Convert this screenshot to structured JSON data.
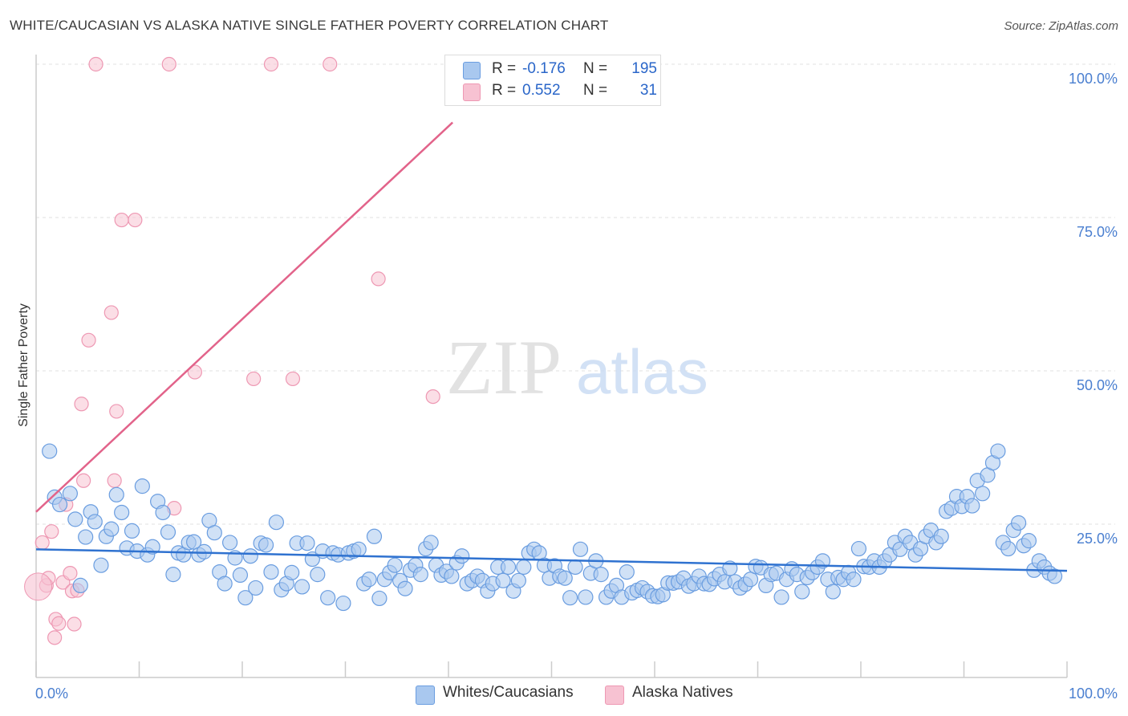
{
  "header": {
    "title": "WHITE/CAUCASIAN VS ALASKA NATIVE SINGLE FATHER POVERTY CORRELATION CHART",
    "source": "Source: ZipAtlas.com"
  },
  "watermark": {
    "zip": "ZIP",
    "atlas": "atlas"
  },
  "legend": {
    "rows": [
      {
        "r_label": "R =",
        "r_value": "-0.176",
        "n_label": "N =",
        "n_value": "195"
      },
      {
        "r_label": "R =",
        "r_value": "0.552",
        "n_label": "N =",
        "n_value": "31"
      }
    ],
    "bottom": [
      {
        "label": "Whites/Caucasians"
      },
      {
        "label": "Alaska Natives"
      }
    ]
  },
  "colors": {
    "blue_fill": "#a9c8ef",
    "blue_stroke": "#6a9de0",
    "blue_line": "#2f72d0",
    "pink_fill": "#f7c2d2",
    "pink_stroke": "#ee98b3",
    "pink_line": "#e2638a",
    "tick_text": "#4a7fd0"
  },
  "chart_data": {
    "type": "scatter",
    "xlabel": "",
    "ylabel": "Single Father Poverty",
    "xlim": [
      0,
      100
    ],
    "ylim": [
      0,
      100
    ],
    "grid": true,
    "legend_position": "top-center",
    "x_tick_labels": [
      "0.0%",
      "100.0%"
    ],
    "y_tick_labels": [
      "25.0%",
      "50.0%",
      "75.0%",
      "100.0%"
    ],
    "y_ticks": [
      25,
      50,
      75,
      100
    ],
    "series": [
      {
        "name": "Whites/Caucasians",
        "color": "blue",
        "trend": {
          "x": [
            0,
            100
          ],
          "y": [
            20.9,
            17.4
          ]
        },
        "points": [
          [
            1.3,
            36.9
          ],
          [
            1.8,
            29.4
          ],
          [
            2.3,
            28.2
          ],
          [
            3.3,
            30.0
          ],
          [
            3.8,
            25.8
          ],
          [
            4.3,
            15.0
          ],
          [
            4.8,
            22.9
          ],
          [
            5.3,
            27.0
          ],
          [
            5.7,
            25.4
          ],
          [
            6.3,
            18.3
          ],
          [
            6.8,
            23.0
          ],
          [
            7.3,
            24.2
          ],
          [
            7.8,
            29.8
          ],
          [
            8.3,
            26.9
          ],
          [
            8.8,
            21.1
          ],
          [
            9.3,
            23.9
          ],
          [
            9.8,
            20.6
          ],
          [
            10.3,
            31.2
          ],
          [
            10.8,
            20.0
          ],
          [
            11.3,
            21.3
          ],
          [
            11.8,
            28.7
          ],
          [
            12.3,
            26.9
          ],
          [
            12.8,
            23.7
          ],
          [
            13.3,
            16.8
          ],
          [
            13.8,
            20.3
          ],
          [
            14.3,
            20.0
          ],
          [
            14.8,
            22.0
          ],
          [
            15.3,
            22.1
          ],
          [
            15.8,
            20.0
          ],
          [
            16.3,
            20.5
          ],
          [
            16.8,
            25.6
          ],
          [
            17.3,
            23.6
          ],
          [
            17.8,
            17.2
          ],
          [
            18.3,
            15.3
          ],
          [
            18.8,
            22.0
          ],
          [
            19.3,
            19.5
          ],
          [
            19.8,
            16.7
          ],
          [
            20.3,
            13.0
          ],
          [
            20.8,
            19.8
          ],
          [
            21.3,
            14.6
          ],
          [
            21.8,
            21.9
          ],
          [
            22.3,
            21.6
          ],
          [
            22.8,
            17.2
          ],
          [
            23.3,
            25.3
          ],
          [
            23.8,
            14.3
          ],
          [
            24.3,
            15.3
          ],
          [
            24.8,
            17.1
          ],
          [
            25.3,
            21.9
          ],
          [
            25.8,
            14.8
          ],
          [
            26.3,
            21.9
          ],
          [
            26.8,
            19.3
          ],
          [
            27.3,
            16.8
          ],
          [
            27.8,
            20.6
          ],
          [
            28.3,
            13.0
          ],
          [
            28.8,
            20.3
          ],
          [
            29.3,
            20.0
          ],
          [
            29.8,
            12.1
          ],
          [
            30.3,
            20.3
          ],
          [
            30.8,
            20.6
          ],
          [
            31.3,
            20.9
          ],
          [
            31.8,
            15.3
          ],
          [
            32.3,
            16.0
          ],
          [
            32.8,
            23.0
          ],
          [
            33.3,
            12.9
          ],
          [
            33.8,
            16.0
          ],
          [
            34.3,
            17.1
          ],
          [
            34.8,
            18.3
          ],
          [
            35.3,
            15.8
          ],
          [
            35.8,
            14.5
          ],
          [
            36.3,
            17.5
          ],
          [
            36.8,
            18.3
          ],
          [
            37.3,
            16.8
          ],
          [
            37.8,
            21.0
          ],
          [
            38.3,
            22.0
          ],
          [
            38.8,
            18.3
          ],
          [
            39.3,
            16.7
          ],
          [
            39.8,
            17.3
          ],
          [
            40.3,
            16.5
          ],
          [
            40.8,
            18.7
          ],
          [
            41.3,
            19.8
          ],
          [
            41.8,
            15.3
          ],
          [
            42.3,
            15.8
          ],
          [
            42.8,
            16.5
          ],
          [
            43.3,
            15.8
          ],
          [
            43.8,
            14.1
          ],
          [
            44.3,
            15.3
          ],
          [
            44.8,
            18.0
          ],
          [
            45.3,
            15.8
          ],
          [
            45.8,
            18.0
          ],
          [
            46.3,
            14.1
          ],
          [
            46.8,
            15.8
          ],
          [
            47.3,
            18.0
          ],
          [
            47.8,
            20.3
          ],
          [
            48.3,
            20.9
          ],
          [
            48.8,
            20.3
          ],
          [
            49.3,
            18.3
          ],
          [
            49.8,
            16.2
          ],
          [
            50.3,
            18.2
          ],
          [
            50.8,
            16.5
          ],
          [
            51.3,
            16.2
          ],
          [
            51.8,
            13.0
          ],
          [
            52.3,
            18.0
          ],
          [
            52.8,
            20.9
          ],
          [
            53.3,
            13.1
          ],
          [
            53.8,
            17.0
          ],
          [
            54.3,
            19.0
          ],
          [
            54.8,
            16.8
          ],
          [
            55.3,
            13.1
          ],
          [
            55.8,
            14.1
          ],
          [
            56.3,
            15.0
          ],
          [
            56.8,
            13.1
          ],
          [
            57.3,
            17.2
          ],
          [
            57.8,
            13.8
          ],
          [
            58.3,
            14.2
          ],
          [
            58.8,
            14.6
          ],
          [
            59.3,
            14.0
          ],
          [
            59.8,
            13.3
          ],
          [
            60.3,
            13.2
          ],
          [
            60.8,
            13.5
          ],
          [
            61.3,
            15.4
          ],
          [
            61.8,
            15.4
          ],
          [
            62.3,
            15.6
          ],
          [
            62.8,
            16.2
          ],
          [
            63.3,
            14.9
          ],
          [
            63.8,
            15.3
          ],
          [
            64.3,
            16.5
          ],
          [
            64.8,
            15.3
          ],
          [
            65.3,
            15.2
          ],
          [
            65.8,
            16.1
          ],
          [
            66.3,
            16.8
          ],
          [
            66.8,
            15.6
          ],
          [
            67.3,
            17.8
          ],
          [
            67.8,
            15.6
          ],
          [
            68.3,
            14.6
          ],
          [
            68.8,
            15.2
          ],
          [
            69.3,
            16.0
          ],
          [
            69.8,
            18.1
          ],
          [
            70.3,
            17.9
          ],
          [
            70.8,
            15.0
          ],
          [
            71.3,
            16.8
          ],
          [
            71.8,
            17.0
          ],
          [
            72.3,
            13.1
          ],
          [
            72.8,
            16.0
          ],
          [
            73.3,
            17.7
          ],
          [
            73.8,
            16.8
          ],
          [
            74.3,
            14.0
          ],
          [
            74.8,
            16.3
          ],
          [
            75.3,
            17.1
          ],
          [
            75.8,
            18.0
          ],
          [
            76.3,
            19.0
          ],
          [
            76.8,
            16.0
          ],
          [
            77.3,
            14.0
          ],
          [
            77.8,
            16.3
          ],
          [
            78.3,
            16.0
          ],
          [
            78.8,
            17.1
          ],
          [
            79.3,
            16.0
          ],
          [
            79.8,
            21.0
          ],
          [
            80.3,
            18.1
          ],
          [
            80.8,
            18.0
          ],
          [
            81.3,
            19.0
          ],
          [
            81.8,
            18.0
          ],
          [
            82.3,
            19.0
          ],
          [
            82.8,
            20.0
          ],
          [
            83.3,
            22.0
          ],
          [
            83.8,
            20.9
          ],
          [
            84.3,
            23.0
          ],
          [
            84.8,
            22.0
          ],
          [
            85.3,
            20.0
          ],
          [
            85.8,
            21.0
          ],
          [
            86.3,
            23.0
          ],
          [
            86.8,
            24.0
          ],
          [
            87.3,
            22.0
          ],
          [
            87.8,
            23.0
          ],
          [
            88.3,
            27.1
          ],
          [
            88.8,
            27.6
          ],
          [
            89.3,
            29.5
          ],
          [
            89.8,
            27.9
          ],
          [
            90.3,
            29.5
          ],
          [
            90.8,
            28.0
          ],
          [
            91.3,
            32.1
          ],
          [
            91.8,
            30.0
          ],
          [
            92.3,
            33.0
          ],
          [
            92.8,
            35.0
          ],
          [
            93.3,
            36.9
          ],
          [
            93.8,
            22.0
          ],
          [
            94.3,
            21.0
          ],
          [
            94.8,
            24.0
          ],
          [
            95.3,
            25.2
          ],
          [
            95.8,
            21.5
          ],
          [
            96.3,
            22.3
          ],
          [
            96.8,
            17.5
          ],
          [
            97.3,
            19.0
          ],
          [
            97.8,
            18.0
          ],
          [
            98.3,
            17.0
          ],
          [
            98.8,
            16.5
          ]
        ]
      },
      {
        "name": "Alaska Natives",
        "color": "pink",
        "trend": {
          "x": [
            0,
            40.4
          ],
          "y": [
            27.0,
            90.5
          ]
        },
        "points": [
          [
            0.6,
            22.0
          ],
          [
            1.0,
            15.0
          ],
          [
            1.2,
            16.2
          ],
          [
            1.5,
            23.8
          ],
          [
            1.8,
            6.5
          ],
          [
            1.9,
            9.5
          ],
          [
            2.2,
            8.8
          ],
          [
            2.6,
            15.5
          ],
          [
            2.9,
            28.2
          ],
          [
            3.3,
            17.0
          ],
          [
            3.5,
            14.1
          ],
          [
            3.7,
            8.7
          ],
          [
            4.0,
            14.2
          ],
          [
            4.4,
            44.6
          ],
          [
            4.6,
            32.1
          ],
          [
            5.1,
            55.0
          ],
          [
            5.8,
            100.0
          ],
          [
            7.3,
            59.5
          ],
          [
            7.6,
            32.1
          ],
          [
            7.8,
            43.4
          ],
          [
            8.3,
            74.6
          ],
          [
            9.6,
            74.6
          ],
          [
            12.9,
            100.0
          ],
          [
            13.4,
            27.6
          ],
          [
            15.4,
            49.8
          ],
          [
            21.1,
            48.7
          ],
          [
            22.8,
            100.0
          ],
          [
            24.9,
            48.7
          ],
          [
            28.5,
            100.0
          ],
          [
            33.2,
            65.0
          ],
          [
            38.5,
            45.8
          ]
        ]
      }
    ]
  }
}
